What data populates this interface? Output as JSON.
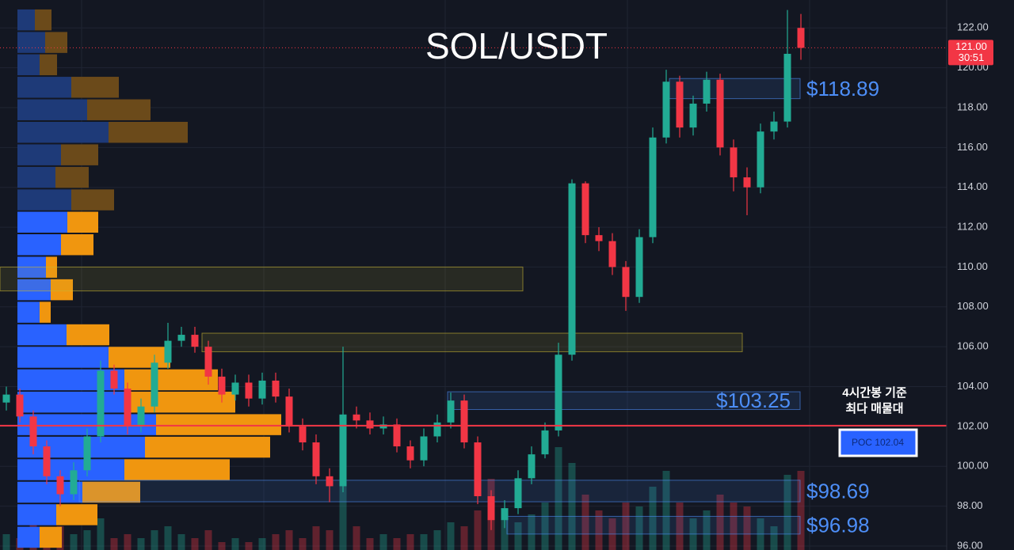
{
  "chart_data": {
    "type": "candlestick",
    "title": "SOL/USDT",
    "ylim": [
      95.8,
      123.4
    ],
    "yticks": [
      {
        "value": 96,
        "label": "96.00"
      },
      {
        "value": 98,
        "label": "98.00"
      },
      {
        "value": 100,
        "label": "100.00"
      },
      {
        "value": 102,
        "label": "102.00"
      },
      {
        "value": 104,
        "label": "104.00"
      },
      {
        "value": 106,
        "label": "106.00"
      },
      {
        "value": 108,
        "label": "108.00"
      },
      {
        "value": 110,
        "label": "110.00"
      },
      {
        "value": 112,
        "label": "112.00"
      },
      {
        "value": 114,
        "label": "114.00"
      },
      {
        "value": 116,
        "label": "116.00"
      },
      {
        "value": 118,
        "label": "118.00"
      },
      {
        "value": 120,
        "label": "120.00"
      },
      {
        "value": 122,
        "label": "122.00"
      }
    ],
    "grid": true,
    "up_color": "#22ab94",
    "down_color": "#f23645",
    "open": [
      103.2,
      103.6,
      102.5,
      101.0,
      99.5,
      98.6,
      99.8,
      101.5,
      104.8,
      103.9,
      102.0,
      103.0,
      105.2,
      106.3,
      106.6,
      106.0,
      104.5,
      103.6,
      104.2,
      103.4,
      104.3,
      103.5,
      102.0,
      101.2,
      99.5,
      99.0,
      102.6,
      102.3,
      101.9,
      102.1,
      101.0,
      100.3,
      101.5,
      102.2,
      103.3,
      101.2,
      98.5,
      97.3,
      97.9,
      99.4,
      100.6,
      101.8,
      105.6,
      114.2,
      111.6,
      111.3,
      110.0,
      108.5,
      111.5,
      116.5,
      119.3,
      117.0,
      118.2,
      119.4,
      116.0,
      114.5,
      114.0,
      116.8,
      117.3,
      122.0
    ],
    "high": [
      104.0,
      103.9,
      102.8,
      101.3,
      99.8,
      100.2,
      101.9,
      105.3,
      105.1,
      104.2,
      103.4,
      105.6,
      107.2,
      107.0,
      107.0,
      106.3,
      104.9,
      104.6,
      104.6,
      104.7,
      104.7,
      103.9,
      102.4,
      101.6,
      99.9,
      106.0,
      103.0,
      102.7,
      102.5,
      102.4,
      101.3,
      101.9,
      102.6,
      103.7,
      103.6,
      101.5,
      98.8,
      98.3,
      99.8,
      101.0,
      102.2,
      106.2,
      114.4,
      114.3,
      112.0,
      111.7,
      110.3,
      111.9,
      117.0,
      119.9,
      119.6,
      118.6,
      119.8,
      119.7,
      116.4,
      115.0,
      117.2,
      117.8,
      122.9,
      122.7
    ],
    "low": [
      102.8,
      102.2,
      100.6,
      99.1,
      98.0,
      98.3,
      99.5,
      101.2,
      103.6,
      101.6,
      101.7,
      102.7,
      104.9,
      106.0,
      105.7,
      104.1,
      103.2,
      103.3,
      103.0,
      103.1,
      103.2,
      101.7,
      100.8,
      99.1,
      98.2,
      98.7,
      101.9,
      101.6,
      101.6,
      100.7,
      99.9,
      100.0,
      101.2,
      101.9,
      100.9,
      98.1,
      96.8,
      96.9,
      97.6,
      99.1,
      100.4,
      101.5,
      105.3,
      111.2,
      110.8,
      109.6,
      107.8,
      108.2,
      111.2,
      116.2,
      116.5,
      116.6,
      117.8,
      115.6,
      113.8,
      112.6,
      113.7,
      116.4,
      117.0,
      120.4
    ],
    "close": [
      103.6,
      102.5,
      101.0,
      99.5,
      98.6,
      99.8,
      101.5,
      104.8,
      103.9,
      102.0,
      103.0,
      105.2,
      106.3,
      106.6,
      106.0,
      104.5,
      103.6,
      104.2,
      103.4,
      104.3,
      103.5,
      102.0,
      101.2,
      99.5,
      99.0,
      102.6,
      102.3,
      101.9,
      102.1,
      101.0,
      100.3,
      101.5,
      102.2,
      103.3,
      101.2,
      98.5,
      97.3,
      97.9,
      99.4,
      100.6,
      101.8,
      105.6,
      114.2,
      111.6,
      111.3,
      110.0,
      108.5,
      111.5,
      116.5,
      119.3,
      117.0,
      118.2,
      119.4,
      116.0,
      114.5,
      114.0,
      116.8,
      117.3,
      120.7,
      121.0
    ],
    "volume": [
      20,
      15,
      35,
      25,
      30,
      20,
      25,
      40,
      15,
      20,
      15,
      25,
      30,
      20,
      15,
      25,
      10,
      15,
      10,
      15,
      20,
      25,
      15,
      30,
      25,
      120,
      30,
      15,
      20,
      15,
      20,
      20,
      25,
      35,
      30,
      50,
      90,
      40,
      35,
      45,
      60,
      130,
      110,
      70,
      50,
      40,
      60,
      55,
      80,
      100,
      60,
      40,
      50,
      70,
      60,
      55,
      40,
      30,
      95,
      100
    ],
    "volume_profile": {
      "levels": [
        122.4,
        121.27,
        120.15,
        119.02,
        117.89,
        116.76,
        115.63,
        114.5,
        113.37,
        112.25,
        111.12,
        109.99,
        108.86,
        107.73,
        106.6,
        105.47,
        104.34,
        103.22,
        102.09,
        100.96,
        99.83,
        98.7,
        97.57,
        96.44
      ],
      "step": 1.13,
      "buy": [
        22,
        35,
        28,
        68,
        88,
        115,
        55,
        48,
        68,
        63,
        55,
        36,
        42,
        28,
        62,
        115,
        135,
        135,
        175,
        161,
        135,
        82,
        49,
        28
      ],
      "sell": [
        21,
        28,
        22,
        60,
        80,
        100,
        47,
        42,
        54,
        39,
        41,
        14,
        28,
        14,
        54,
        78,
        118,
        140,
        158,
        158,
        133,
        73,
        52,
        28
      ],
      "dim": [
        true,
        true,
        true,
        true,
        true,
        true,
        true,
        true,
        true,
        false,
        false,
        false,
        false,
        false,
        false,
        false,
        false,
        false,
        false,
        false,
        false,
        false,
        false,
        false
      ],
      "buy_color": "#2962ff",
      "sell_color": "#f0960f",
      "buy_color_dim": "#1e3a78",
      "sell_color_dim": "#6b4a1a"
    },
    "zones": [
      {
        "top": 119.46,
        "bottom": 118.45,
        "label": "$118.89",
        "color": "#4d8ef7"
      },
      {
        "top": 110.0,
        "bottom": 108.8,
        "color": "#c8b432"
      },
      {
        "top": 106.68,
        "bottom": 105.75,
        "color": "#c8b432"
      },
      {
        "top": 103.74,
        "bottom": 102.85,
        "label": "$103.25",
        "color": "#4d8ef7"
      },
      {
        "top": 99.3,
        "bottom": 98.22,
        "label": "$98.69",
        "color": "#4d8ef7"
      },
      {
        "top": 97.49,
        "bottom": 96.6,
        "label": "$96.98",
        "color": "#4d8ef7"
      }
    ],
    "poc": {
      "value": 102.04,
      "label": "POC  102.04"
    },
    "annotation": [
      "4시간봉 기준",
      "최다 매물대"
    ],
    "current_price": {
      "value": 121,
      "label": "121.00"
    },
    "countdown": "30:51"
  }
}
